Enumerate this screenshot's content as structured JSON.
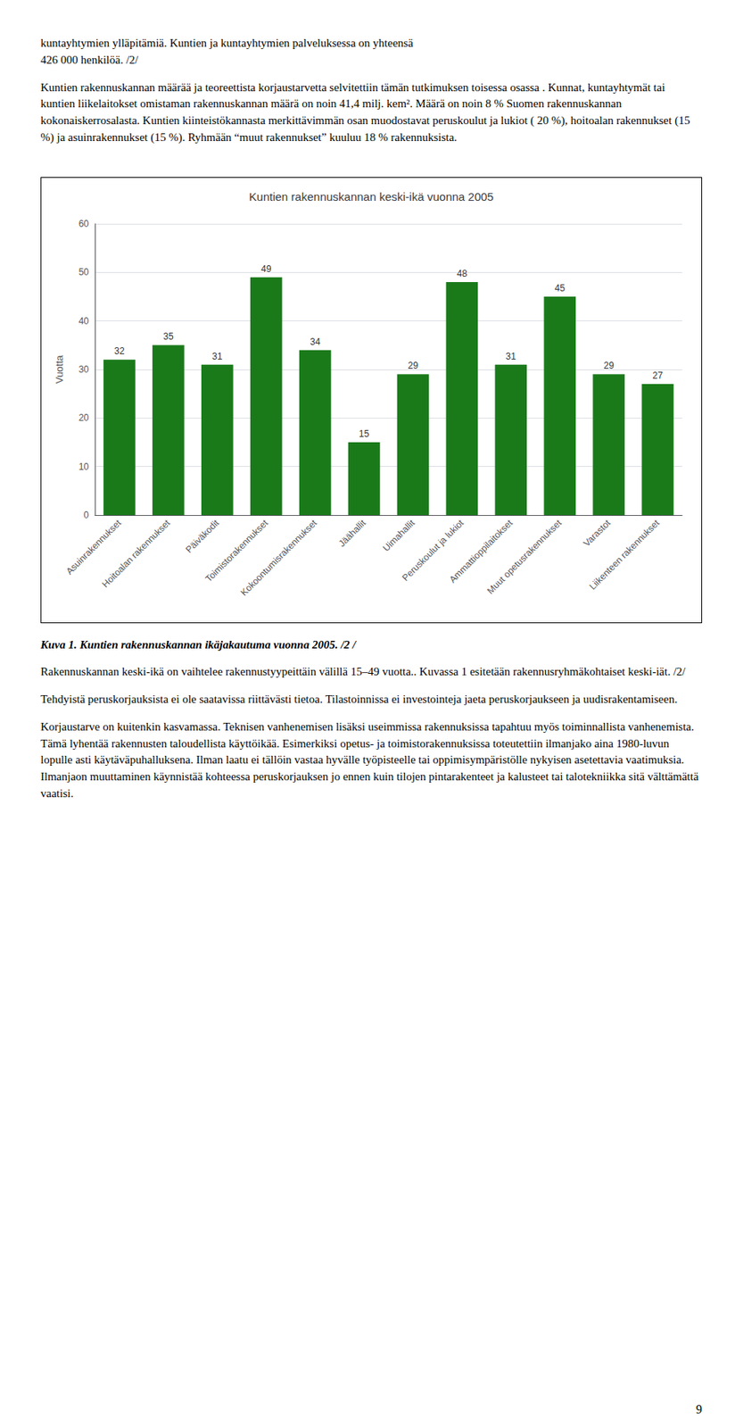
{
  "text_top_1": "kuntayhtymien ylläpitämiä. Kuntien ja kuntayhtymien palveluksessa on yhteensä\n426 000 henkilöä. /2/",
  "text_top_2": "Kuntien rakennuskannan määrää ja teoreettista korjaustarvetta selvitettiin tämän tutkimuksen toisessa osassa . Kunnat, kuntayhtymät tai kuntien liikelaitokset omistaman rakennuskannan määrä on noin 41,4 milj. kem². Määrä on noin 8 % Suomen rakennuskannan kokonaiskerrosalasta. Kuntien kiinteistökannasta merkittävimmän osan muodostavat peruskoulut ja lukiot ( 20 %), hoitoalan rakennukset (15 %) ja asuinrakennukset (15 %). Ryhmään “muut rakennukset” kuuluu 18 % rakennuksista.",
  "caption": "Kuva 1. Kuntien rakennuskannan ikäjakautuma vuonna 2005. /2 /",
  "text_after_caption": "Rakennuskannan keski-ikä on vaihtelee rakennustyypeittäin välillä 15–49 vuotta.. Kuvassa 1 esitetään rakennusryhmäkohtaiset keski-iät. /2/",
  "text_body_1": "Tehdyistä peruskorjauksista ei ole saatavissa riittävästi tietoa. Tilastoinnissa ei investointeja jaeta peruskorjaukseen ja uudisrakentamiseen.",
  "text_body_2": "Korjaustarve on kuitenkin kasvamassa. Teknisen vanhenemisen lisäksi useimmissa rakennuksissa tapahtuu myös toiminnallista vanhenemista. Tämä lyhentää rakennusten taloudellista käyttöikää. Esimerkiksi opetus- ja toimistorakennuksissa toteutettiin ilmanjako aina 1980-luvun lopulle asti käytäväpuhalluksena. Ilman laatu ei tällöin vastaa hyvälle työpisteelle tai oppimisympäristölle nykyisen asetettavia vaatimuksia. Ilmanjaon muuttaminen käynnistää kohteessa peruskorjauksen jo ennen kuin tilojen pintarakenteet ja kalusteet tai talotekniikka sitä välttämättä vaatisi.",
  "page_number": "9",
  "chart_data": {
    "type": "bar",
    "title": "Kuntien rakennuskannan keski-ikä vuonna 2005",
    "ylabel": "Vuotta",
    "categories": [
      "Asuinrakennukset",
      "Hoitoalan rakennukset",
      "Päiväkodit",
      "Toimistorakennukset",
      "Kokoontumisrakennukset",
      "Jäähallit",
      "Uimahallit",
      "Peruskoulut ja lukiot",
      "Ammattioppilaitokset",
      "Muut opetusrakennukset",
      "Varastot",
      "Liikenteen rakennukset"
    ],
    "values": [
      32,
      35,
      31,
      49,
      34,
      15,
      29,
      48,
      31,
      45,
      29,
      27
    ],
    "color": "#1a7a1a",
    "ylim": [
      0,
      60
    ],
    "yticks": [
      0,
      10,
      20,
      30,
      40,
      50,
      60
    ],
    "grid": true,
    "data_labels": true
  }
}
